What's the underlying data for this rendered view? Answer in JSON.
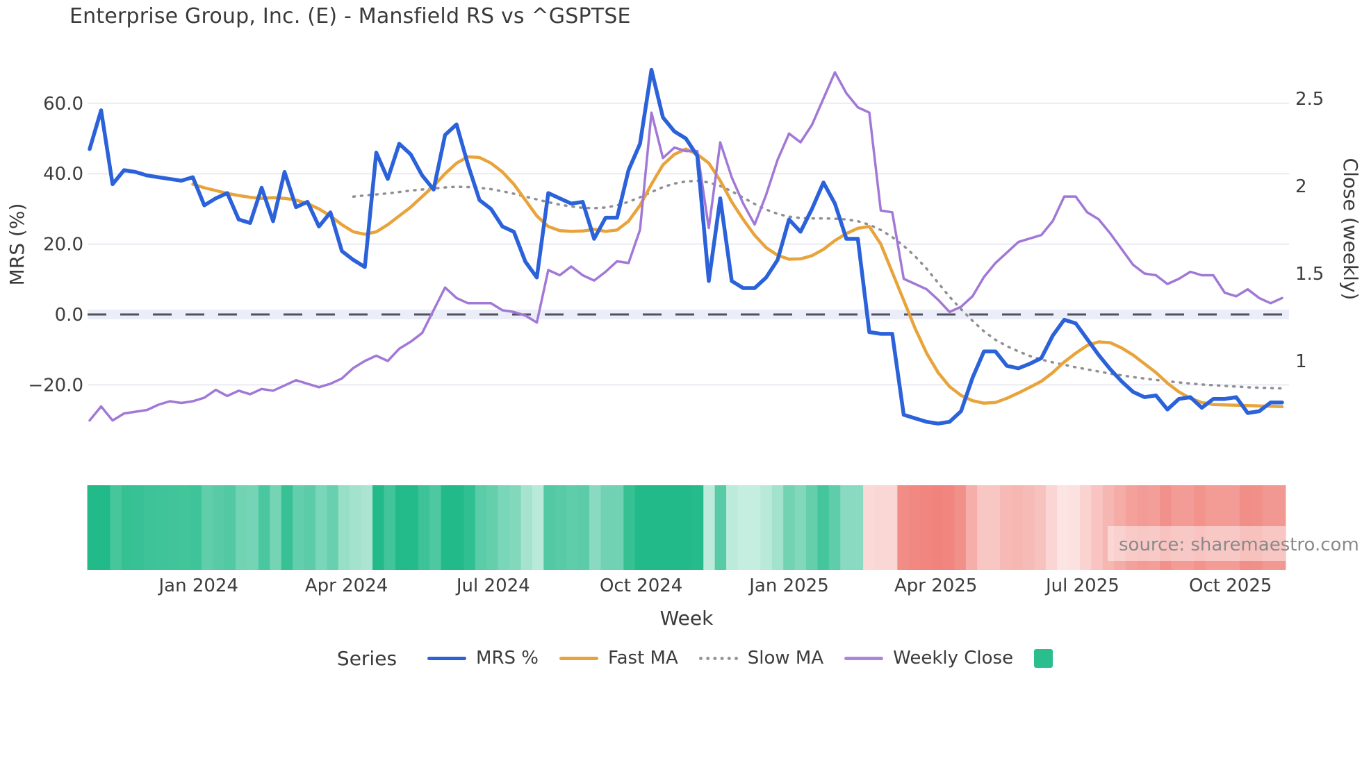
{
  "title": "Enterprise Group, Inc. (E) - Mansfield RS vs ^GSPTSE",
  "source_note": "source: sharemaestro.com",
  "legend": {
    "title": "Series",
    "items": [
      {
        "label": "MRS %",
        "color": "#2b62d9",
        "style": "solid"
      },
      {
        "label": "Fast MA",
        "color": "#e8a33b",
        "style": "solid"
      },
      {
        "label": "Slow MA",
        "color": "#95959b",
        "style": "dotted"
      },
      {
        "label": "Weekly Close",
        "color": "#ad85dd",
        "style": "solid"
      },
      {
        "label": "",
        "color": "#2abd8e",
        "style": "square"
      }
    ]
  },
  "axes": {
    "y_left": {
      "label": "MRS (%)",
      "ticks": [
        {
          "label": "60.0",
          "value": 60
        },
        {
          "label": "40.0",
          "value": 40
        },
        {
          "label": "20.0",
          "value": 20
        },
        {
          "label": "0.0",
          "value": 0
        },
        {
          "label": "−20.0",
          "value": -20
        }
      ]
    },
    "y_right": {
      "label": "Close (weekly)",
      "ticks": [
        {
          "label": "2.5",
          "value": 2.5
        },
        {
          "label": "2",
          "value": 2
        },
        {
          "label": "1.5",
          "value": 1.5
        },
        {
          "label": "1",
          "value": 1
        }
      ]
    },
    "x": {
      "label": "Week",
      "ticks": [
        {
          "label": "Jan 2024",
          "week": 9.5
        },
        {
          "label": "Apr 2024",
          "week": 22.4
        },
        {
          "label": "Jul 2024",
          "week": 35.2
        },
        {
          "label": "Oct 2024",
          "week": 48.1
        },
        {
          "label": "Jan 2025",
          "week": 61.0
        },
        {
          "label": "Apr 2025",
          "week": 73.8
        },
        {
          "label": "Jul 2025",
          "week": 86.6
        },
        {
          "label": "Oct 2025",
          "week": 99.5
        }
      ]
    }
  },
  "chart_data": {
    "type": "line",
    "x_unit": "weekly index, Nov 2023 - Nov 2025",
    "n_points": 105,
    "grid": "horizontal only",
    "zero_line": {
      "value": 0,
      "style": "dashed",
      "color": "#50505a",
      "band_color": "#ebeef8"
    },
    "y_left_range": [
      -35,
      72
    ],
    "y_right_range": [
      0.6,
      2.75
    ],
    "series": [
      {
        "name": "MRS %",
        "axis": "left",
        "color": "#2b62d9",
        "width": 5.5,
        "dash": "solid",
        "values": [
          47,
          58,
          37,
          41,
          40.5,
          39.5,
          39,
          38.5,
          38,
          39,
          31,
          33,
          34.5,
          27,
          26,
          36,
          26.5,
          40.5,
          30.5,
          32,
          25,
          29,
          18,
          15.5,
          13.5,
          46,
          38.5,
          48.5,
          45.5,
          39.5,
          35.5,
          51,
          54,
          42.5,
          32.5,
          30,
          25,
          23.5,
          15,
          10.5,
          34.5,
          33,
          31.5,
          32,
          21.5,
          27.5,
          27.5,
          41,
          48.5,
          69.5,
          56,
          52,
          50,
          45,
          9.5,
          33,
          9.5,
          7.5,
          7.5,
          10.5,
          15.5,
          27,
          23.5,
          30,
          37.5,
          31.5,
          21.5,
          21.5,
          -5,
          -5.5,
          -5.5,
          -28.5,
          -29.5,
          -30.5,
          -31,
          -30.5,
          -27.5,
          -18,
          -10.5,
          -10.5,
          -14.6,
          -15.3,
          -14,
          -12.4,
          -6,
          -1.5,
          -2.5,
          -7,
          -11.5,
          -15.5,
          -19,
          -22,
          -23.5,
          -23,
          -27,
          -24,
          -23.5,
          -26.5,
          -24,
          -24,
          -23.5,
          -28,
          -27.5,
          -25,
          -25
        ]
      },
      {
        "name": "Fast MA",
        "axis": "left",
        "color": "#e8a33b",
        "width": 4.5,
        "dash": "solid",
        "values": [
          null,
          null,
          null,
          null,
          null,
          null,
          null,
          null,
          null,
          37,
          36,
          35.2,
          34.4,
          33.8,
          33.3,
          33,
          33.2,
          33,
          32.5,
          31.5,
          30,
          28,
          25.5,
          23.5,
          22.8,
          23.5,
          25.5,
          28,
          30.5,
          33.5,
          36.5,
          40,
          43,
          44.8,
          44.6,
          43,
          40.5,
          37,
          32.5,
          28,
          25,
          23.8,
          23.6,
          23.7,
          24.2,
          23.6,
          24,
          26.5,
          31,
          37,
          42.5,
          45.5,
          47,
          45.5,
          43,
          38,
          32,
          27,
          22.5,
          19,
          16.8,
          15.7,
          15.8,
          16.7,
          18.5,
          21,
          23,
          24.5,
          25,
          20,
          12,
          4,
          -4,
          -11,
          -16.5,
          -20.5,
          -23,
          -24.5,
          -25.2,
          -25,
          -23.8,
          -22.3,
          -20.7,
          -19,
          -16.5,
          -13.5,
          -11,
          -8.8,
          -7.8,
          -8,
          -9.5,
          -11.5,
          -14,
          -16.5,
          -19.5,
          -22,
          -23.8,
          -25,
          -25.6,
          -25.7,
          -25.8,
          -25.9,
          -26,
          -26.1,
          -26.2
        ]
      },
      {
        "name": "Slow MA",
        "axis": "left",
        "color": "#8f8f96",
        "width": 3.5,
        "dash": "dotted",
        "values": [
          null,
          null,
          null,
          null,
          null,
          null,
          null,
          null,
          null,
          null,
          null,
          null,
          null,
          null,
          null,
          null,
          null,
          null,
          null,
          null,
          null,
          null,
          null,
          33.5,
          33.8,
          34.1,
          34.4,
          34.8,
          35.2,
          35.5,
          35.8,
          36.1,
          36.3,
          36.2,
          36,
          35.6,
          35,
          34.3,
          33.5,
          32.7,
          31.9,
          31.2,
          30.7,
          30.3,
          30.2,
          30.4,
          31,
          32,
          33.3,
          34.8,
          36.2,
          37.2,
          37.8,
          38,
          37.5,
          36.5,
          35,
          33.2,
          31.4,
          29.8,
          28.6,
          27.8,
          27.4,
          27.3,
          27.3,
          27.2,
          27,
          26.5,
          25.5,
          24,
          22,
          19.5,
          16.5,
          13,
          9,
          5,
          1.5,
          -1.8,
          -4.8,
          -7.2,
          -9,
          -10.5,
          -11.8,
          -12.8,
          -13.6,
          -14.3,
          -15,
          -15.6,
          -16.2,
          -16.8,
          -17.3,
          -17.8,
          -18.2,
          -18.6,
          -19,
          -19.3,
          -19.6,
          -19.9,
          -20.1,
          -20.3,
          -20.5,
          -20.7,
          -20.8,
          -20.9,
          -21
        ]
      },
      {
        "name": "Weekly Close",
        "axis": "right",
        "color": "#a178d6",
        "width": 3.5,
        "dash": "solid",
        "values": [
          0.66,
          0.74,
          0.66,
          0.7,
          0.71,
          0.72,
          0.75,
          0.77,
          0.76,
          0.77,
          0.79,
          0.835,
          0.8,
          0.83,
          0.81,
          0.84,
          0.83,
          0.86,
          0.89,
          0.87,
          0.85,
          0.87,
          0.9,
          0.96,
          1.0,
          1.03,
          1.0,
          1.07,
          1.11,
          1.16,
          1.29,
          1.42,
          1.36,
          1.33,
          1.33,
          1.33,
          1.29,
          1.28,
          1.26,
          1.22,
          1.52,
          1.49,
          1.54,
          1.49,
          1.46,
          1.51,
          1.57,
          1.56,
          1.75,
          2.42,
          2.16,
          2.22,
          2.2,
          2.2,
          1.76,
          2.25,
          2.05,
          1.9,
          1.78,
          1.95,
          2.15,
          2.3,
          2.25,
          2.35,
          2.5,
          2.65,
          2.53,
          2.45,
          2.42,
          1.86,
          1.85,
          1.47,
          1.44,
          1.41,
          1.35,
          1.28,
          1.31,
          1.37,
          1.48,
          1.56,
          1.62,
          1.68,
          1.7,
          1.72,
          1.8,
          1.94,
          1.94,
          1.85,
          1.81,
          1.73,
          1.64,
          1.55,
          1.5,
          1.49,
          1.44,
          1.47,
          1.51,
          1.49,
          1.49,
          1.39,
          1.37,
          1.41,
          1.36,
          1.33,
          1.36
        ]
      }
    ],
    "heatmap": {
      "description": "weekly strip colored by MRS % value: green when positive, red when negative, intensity scales with magnitude",
      "source_series": "MRS %",
      "positive_color": "#21ba88",
      "negative_color": "#f0847d",
      "neutral_color": "#ffffff"
    }
  }
}
